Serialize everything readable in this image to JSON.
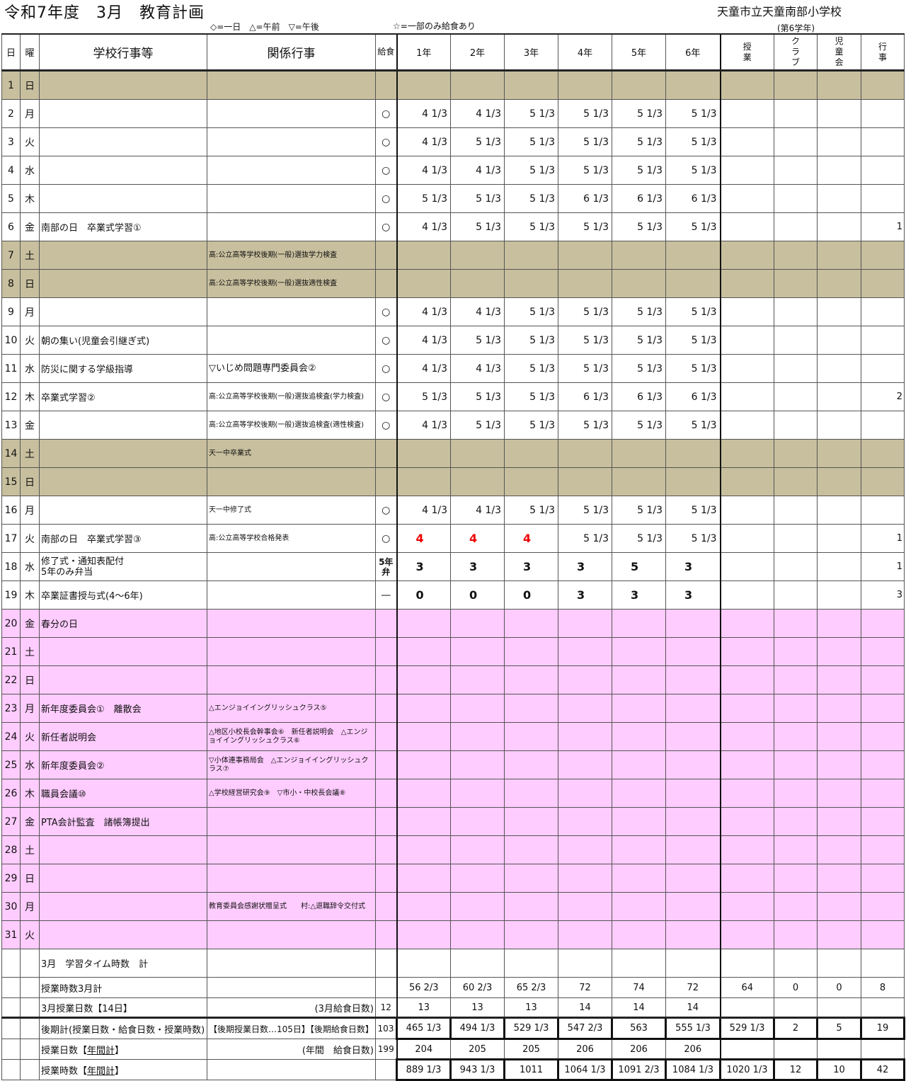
{
  "header": {
    "title": "令和7年度　3月　教育計画",
    "school": "天童市立天童南部小学校",
    "legend1": "◇=一日　△=午前　▽=午後",
    "legend2": "☆=一部のみ給食あり",
    "grade": "(第6学年)"
  },
  "columns": {
    "day": "日",
    "weekday": "曜",
    "school_events": "学校行事等",
    "related_events": "関係行事",
    "lunch": "給食",
    "grades": [
      "1年",
      "2年",
      "3年",
      "4年",
      "5年",
      "6年"
    ],
    "classes": "授業",
    "club": "クラブ",
    "council": "児童会",
    "events": "行事"
  },
  "colors": {
    "weekend": "#c8bf9e",
    "holiday": "#ffccff",
    "red": "#ee0000"
  },
  "rows": [
    {
      "d": "1",
      "w": "日",
      "type": "tan"
    },
    {
      "d": "2",
      "w": "月",
      "l": "○",
      "g": [
        "4 1/3",
        "4 1/3",
        "5 1/3",
        "5 1/3",
        "5 1/3",
        "5 1/3"
      ]
    },
    {
      "d": "3",
      "w": "火",
      "l": "○",
      "g": [
        "4 1/3",
        "5 1/3",
        "5 1/3",
        "5 1/3",
        "5 1/3",
        "5 1/3"
      ]
    },
    {
      "d": "4",
      "w": "水",
      "l": "○",
      "g": [
        "4 1/3",
        "4 1/3",
        "5 1/3",
        "5 1/3",
        "5 1/3",
        "5 1/3"
      ]
    },
    {
      "d": "5",
      "w": "木",
      "l": "○",
      "g": [
        "5 1/3",
        "5 1/3",
        "5 1/3",
        "6 1/3",
        "6 1/3",
        "6 1/3"
      ]
    },
    {
      "d": "6",
      "w": "金",
      "ev": "南部の日　卒業式学習①",
      "l": "○",
      "g": [
        "4 1/3",
        "5 1/3",
        "5 1/3",
        "5 1/3",
        "5 1/3",
        "5 1/3"
      ],
      "x": [
        "",
        "",
        "",
        "1"
      ]
    },
    {
      "d": "7",
      "w": "土",
      "type": "tan",
      "rel": "高:公立高等学校後期(一般)選抜学力検査"
    },
    {
      "d": "8",
      "w": "日",
      "type": "tan",
      "rel": "高:公立高等学校後期(一般)選抜適性検査"
    },
    {
      "d": "9",
      "w": "月",
      "l": "○",
      "g": [
        "4 1/3",
        "4 1/3",
        "5 1/3",
        "5 1/3",
        "5 1/3",
        "5 1/3"
      ]
    },
    {
      "d": "10",
      "w": "火",
      "ev": "朝の集い(児童会引継ぎ式)",
      "l": "○",
      "g": [
        "4 1/3",
        "5 1/3",
        "5 1/3",
        "5 1/3",
        "5 1/3",
        "5 1/3"
      ]
    },
    {
      "d": "11",
      "w": "水",
      "ev": "防災に関する学級指導",
      "rel": "▽いじめ問題専門委員会②",
      "relbig": true,
      "l": "○",
      "g": [
        "4 1/3",
        "4 1/3",
        "5 1/3",
        "5 1/3",
        "5 1/3",
        "5 1/3"
      ]
    },
    {
      "d": "12",
      "w": "木",
      "ev": "卒業式学習②",
      "rel": "高:公立高等学校後期(一般)選抜追検査(学力検査)",
      "l": "○",
      "g": [
        "5 1/3",
        "5 1/3",
        "5 1/3",
        "6 1/3",
        "6 1/3",
        "6 1/3"
      ],
      "x": [
        "",
        "",
        "",
        "2"
      ]
    },
    {
      "d": "13",
      "w": "金",
      "rel": "高:公立高等学校後期(一般)選抜追検査(適性検査)",
      "l": "○",
      "g": [
        "4 1/3",
        "5 1/3",
        "5 1/3",
        "5 1/3",
        "5 1/3",
        "5 1/3"
      ]
    },
    {
      "d": "14",
      "w": "土",
      "type": "tan",
      "rel": "天一中卒業式"
    },
    {
      "d": "15",
      "w": "日",
      "type": "tan"
    },
    {
      "d": "16",
      "w": "月",
      "rel": "天一中修了式",
      "l": "○",
      "g": [
        "4 1/3",
        "4 1/3",
        "5 1/3",
        "5 1/3",
        "5 1/3",
        "5 1/3"
      ]
    },
    {
      "d": "17",
      "w": "火",
      "ev": "南部の日　卒業式学習③",
      "rel": "高:公立高等学校合格発表",
      "l": "○",
      "g": [
        "4",
        "4",
        "4",
        "5 1/3",
        "5 1/3",
        "5 1/3"
      ],
      "red": [
        0,
        1,
        2
      ],
      "x": [
        "",
        "",
        "",
        "1"
      ]
    },
    {
      "d": "18",
      "w": "水",
      "ev": "修了式・通知表配付\n5年のみ弁当",
      "l": "5年\n弁",
      "g": [
        "3",
        "3",
        "3",
        "3",
        "5",
        "3"
      ],
      "bold": true,
      "x": [
        "",
        "",
        "",
        "1"
      ]
    },
    {
      "d": "19",
      "w": "木",
      "ev": "卒業証書授与式(4〜6年)",
      "l": "—",
      "g": [
        "0",
        "0",
        "0",
        "3",
        "3",
        "3"
      ],
      "bold": true,
      "x": [
        "",
        "",
        "",
        "3"
      ]
    },
    {
      "d": "20",
      "w": "金",
      "type": "pink",
      "ev": "春分の日"
    },
    {
      "d": "21",
      "w": "土",
      "type": "pink"
    },
    {
      "d": "22",
      "w": "日",
      "type": "pink"
    },
    {
      "d": "23",
      "w": "月",
      "type": "pink",
      "ev": "新年度委員会①　離散会",
      "rel": "△エンジョイイングリッシュクラス⑤"
    },
    {
      "d": "24",
      "w": "火",
      "type": "pink",
      "ev": "新任者説明会",
      "rel": "△地区小校長会幹事会⑥　新任者説明会　△エンジョイイングリッシュクラス⑥"
    },
    {
      "d": "25",
      "w": "水",
      "type": "pink",
      "ev": "新年度委員会②",
      "rel": "▽小体連事務局会　△エンジョイイングリッシュクラス⑦"
    },
    {
      "d": "26",
      "w": "木",
      "type": "pink",
      "ev": "職員会議⑩",
      "rel": "△学校経営研究会⑨　▽市小・中校長会議⑧"
    },
    {
      "d": "27",
      "w": "金",
      "type": "pink",
      "ev": "PTA会計監査　諸帳簿提出"
    },
    {
      "d": "28",
      "w": "土",
      "type": "pink"
    },
    {
      "d": "29",
      "w": "日",
      "type": "pink"
    },
    {
      "d": "30",
      "w": "月",
      "type": "pink",
      "rel": "教育委員会感謝状贈呈式　　村:△退職辞令交付式"
    },
    {
      "d": "31",
      "w": "火",
      "type": "pink"
    }
  ],
  "footer": [
    {
      "label": "3月　学習タイム時数　計",
      "rel": "",
      "l": "",
      "g": [
        "",
        "",
        "",
        "",
        "",
        ""
      ],
      "x": [
        "",
        "",
        "",
        ""
      ]
    },
    {
      "label": "授業時数3月計",
      "rel": "",
      "l": "",
      "g": [
        "56 2/3",
        "60 2/3",
        "65 2/3",
        "72",
        "74",
        "72"
      ],
      "x": [
        "64",
        "0",
        "0",
        "8"
      ]
    },
    {
      "label": "3月授業日数【14日】",
      "rel": "(3月給食日数)",
      "l": "12",
      "g": [
        "13",
        "13",
        "13",
        "14",
        "14",
        "14"
      ],
      "x": [
        "",
        "",
        "",
        ""
      ]
    },
    {
      "label": "後期計(授業日数・給食日数・授業時数)",
      "rel": "【後期授業日数…105日】【後期給食日数】",
      "l": "103",
      "g": [
        "465 1/3",
        "494 1/3",
        "529 1/3",
        "547 2/3",
        "563",
        "555 1/3"
      ],
      "x": [
        "529 1/3",
        "2",
        "5",
        "19"
      ],
      "box": true
    },
    {
      "label": "授業日数",
      "labelU": "年間計",
      "rel": "(年間　給食日数)",
      "l": "199",
      "g": [
        "204",
        "205",
        "205",
        "206",
        "206",
        "206"
      ],
      "x": [
        "",
        "",
        "",
        ""
      ]
    },
    {
      "label": "授業時数",
      "labelU": "年間計",
      "rel": "",
      "l": "",
      "g": [
        "889 1/3",
        "943 1/3",
        "1011",
        "1064 1/3",
        "1091 2/3",
        "1084 1/3"
      ],
      "x": [
        "1020 1/3",
        "12",
        "10",
        "42"
      ],
      "box": true
    }
  ]
}
